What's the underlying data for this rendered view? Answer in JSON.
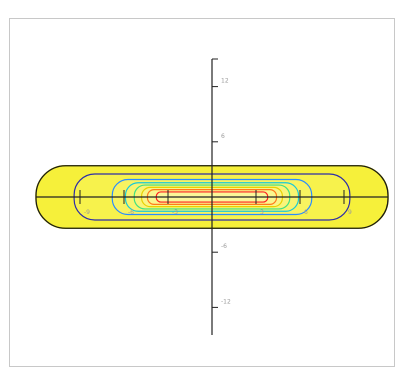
{
  "chart_data": {
    "type": "contour",
    "title": "",
    "xlabel": "",
    "ylabel": "",
    "x_ticks": [
      "-9",
      "-6",
      "-3",
      "",
      "3",
      "6",
      "9"
    ],
    "y_ticks": [
      "-12",
      "-6",
      "",
      "6",
      "12"
    ],
    "xlim": [
      -12,
      12
    ],
    "ylim": [
      -15,
      15
    ],
    "grid": false,
    "legend": "none",
    "contours": [
      {
        "level": 1,
        "color": "#f3f000",
        "fill": "#f6f03a",
        "half_width": 12.0,
        "half_height": 3.4
      },
      {
        "level": 2,
        "color": "#2d2da8",
        "fill": "#f7f24c",
        "half_width": 9.4,
        "half_height": 2.5
      },
      {
        "level": 3,
        "color": "#2a8cff",
        "fill": "#f8f360",
        "half_width": 6.8,
        "half_height": 1.9
      },
      {
        "level": 4,
        "color": "#18c8d8",
        "fill": "#f8f470",
        "half_width": 5.9,
        "half_height": 1.55
      },
      {
        "level": 5,
        "color": "#40e080",
        "fill": "#f9f47a",
        "half_width": 5.3,
        "half_height": 1.3
      },
      {
        "level": 6,
        "color": "#e8d000",
        "fill": "#faf588",
        "half_width": 4.8,
        "half_height": 1.05
      },
      {
        "level": 7,
        "color": "#ff7a1a",
        "fill": "#faf68f",
        "half_width": 4.4,
        "half_height": 0.8
      },
      {
        "level": 8,
        "color": "#ff2020",
        "fill": "#fbf698",
        "half_width": 3.8,
        "half_height": 0.55
      }
    ]
  }
}
